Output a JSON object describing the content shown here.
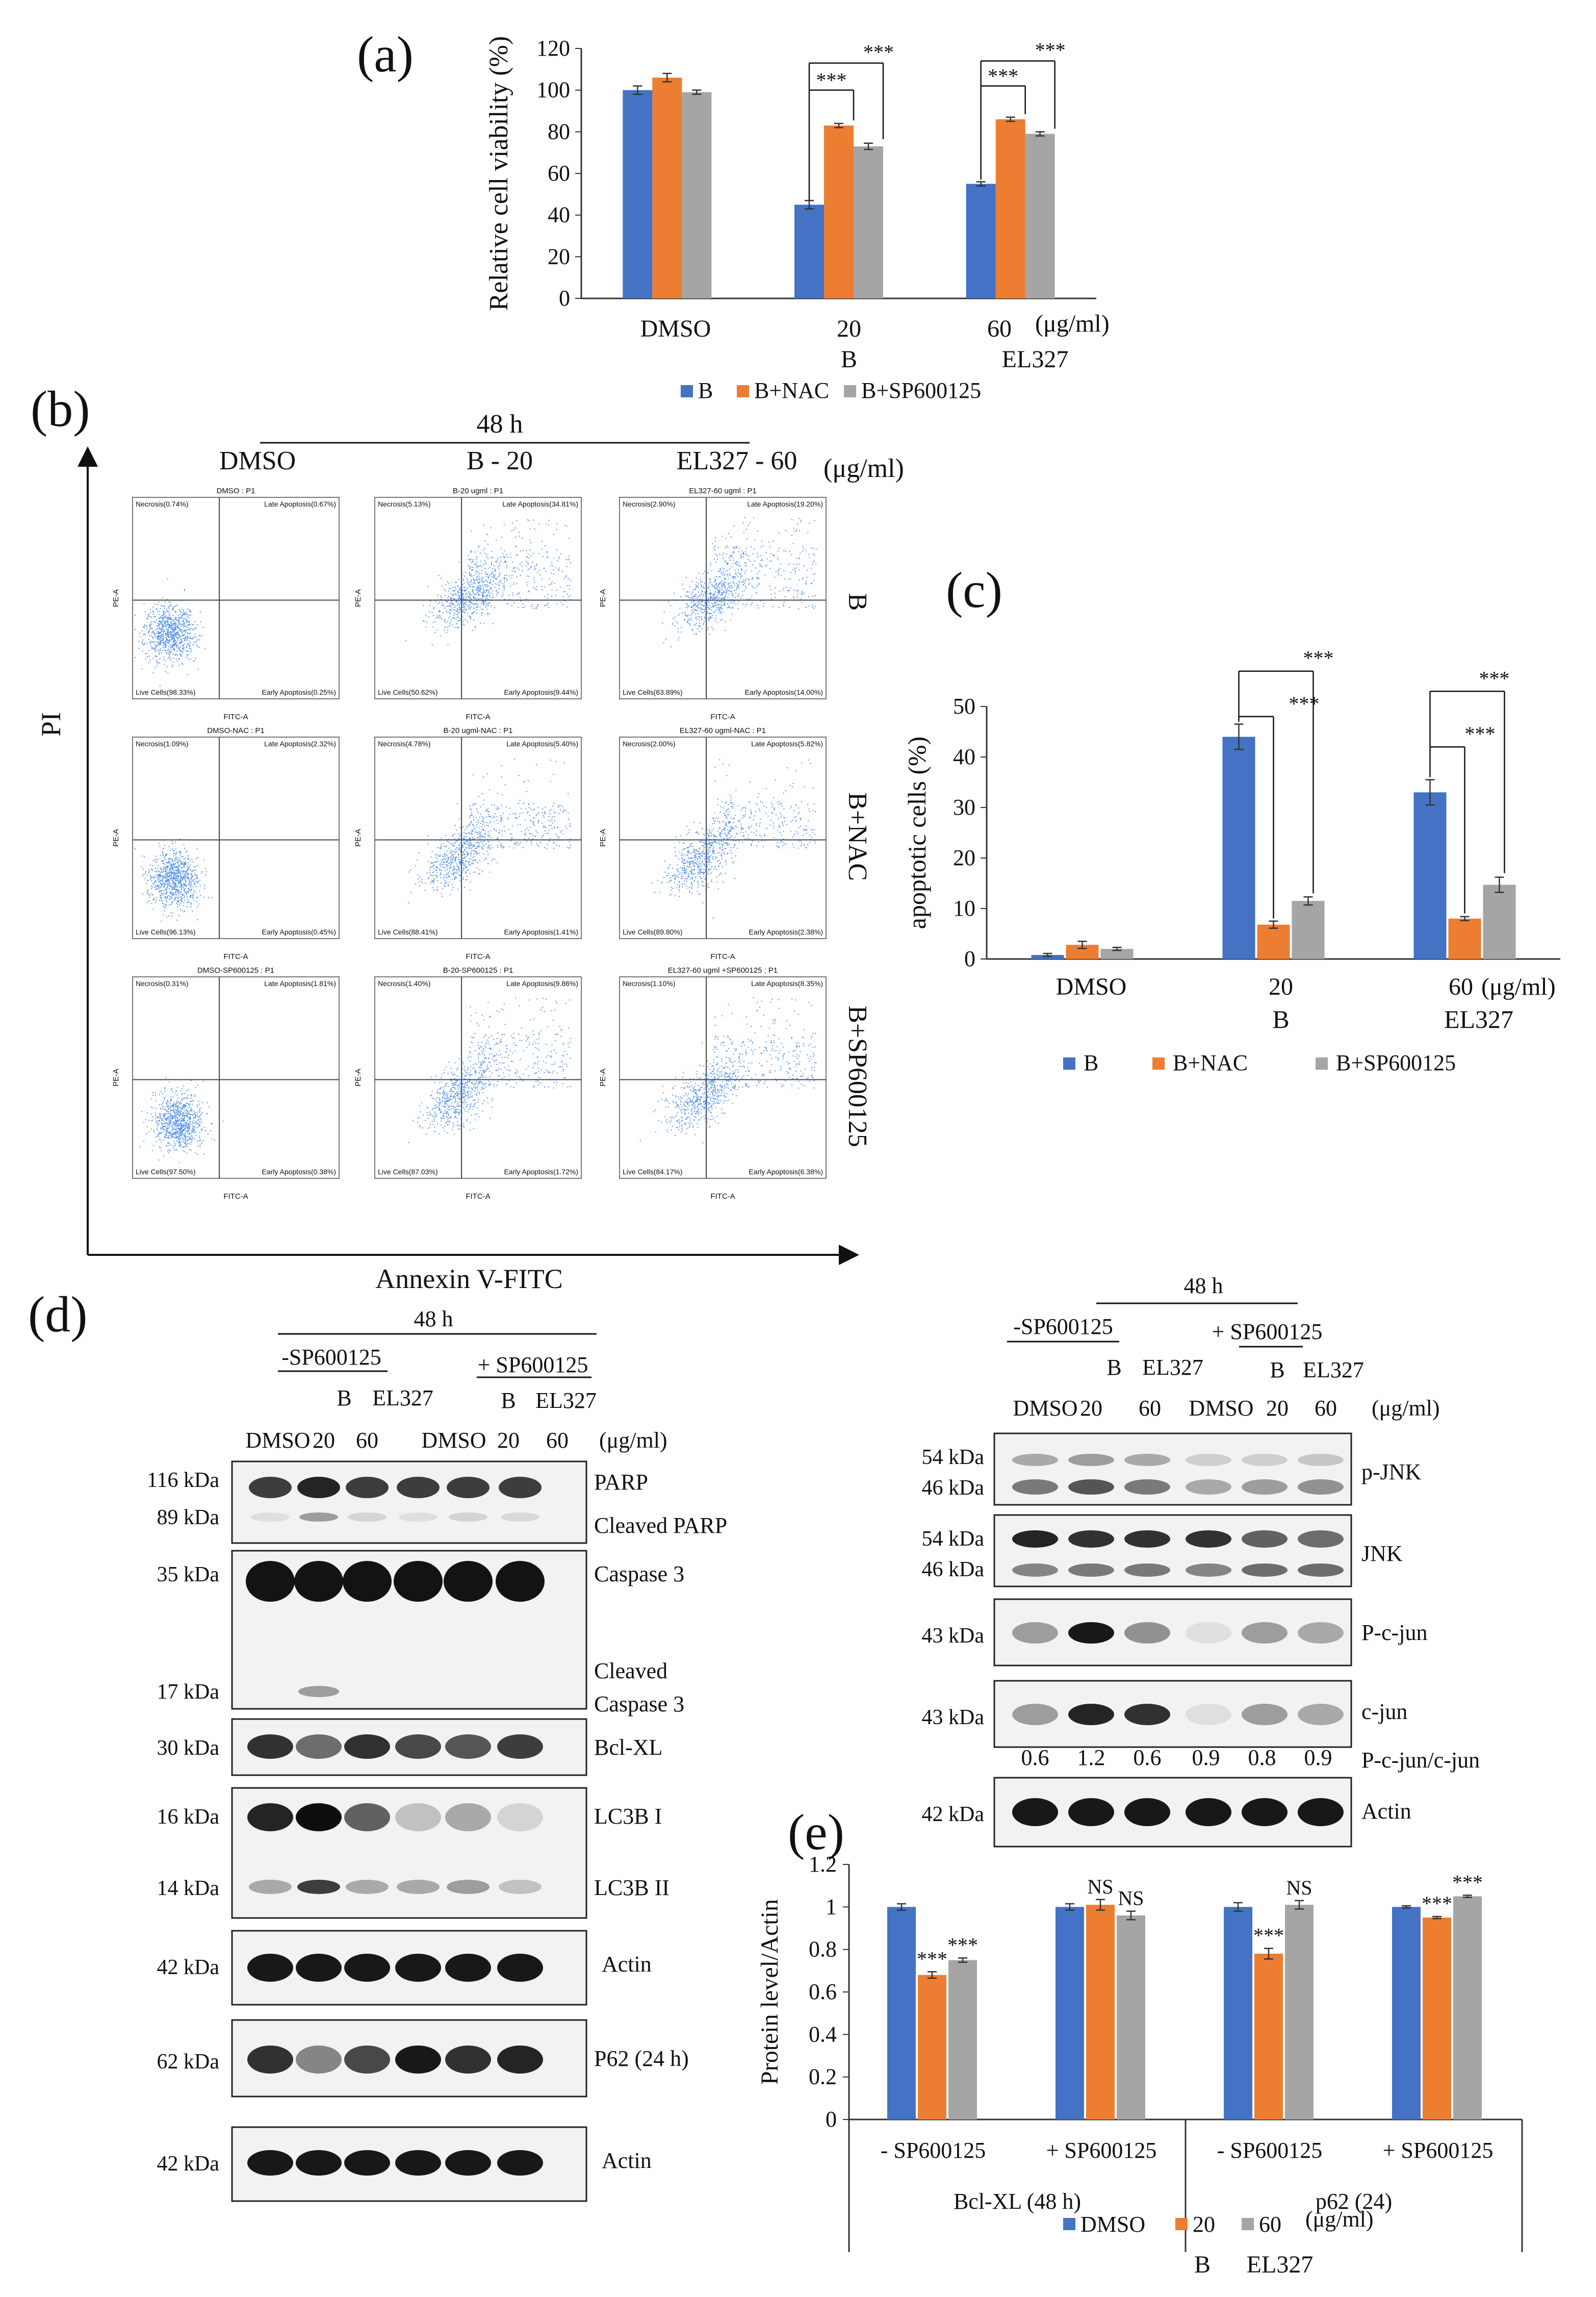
{
  "colors": {
    "B": "#4472C4",
    "B+NAC": "#ED7D31",
    "B+SP600125": "#A5A5A5",
    "flow": "#1e6fe0"
  },
  "panel_labels": {
    "a": "(a)",
    "b": "(b)",
    "c": "(c)",
    "d": "(d)",
    "e": "(e)"
  },
  "unit": "(μg/ml)",
  "sig": "***",
  "chart_data": [
    {
      "id": "a",
      "type": "bar",
      "title": "",
      "ylabel": "Relative cell viability (%)",
      "ylim": [
        0,
        120
      ],
      "yticks": [
        0,
        20,
        40,
        60,
        80,
        100,
        120
      ],
      "categories": [
        "DMSO",
        "20",
        "60"
      ],
      "category_sublabels": [
        "",
        "B",
        "EL327"
      ],
      "x_unit": "(μg/ml)",
      "series": [
        {
          "name": "B",
          "values": [
            100,
            45,
            55
          ],
          "errors": [
            2,
            2,
            1
          ]
        },
        {
          "name": "B+NAC",
          "values": [
            106,
            83,
            86
          ],
          "errors": [
            2,
            1,
            1
          ]
        },
        {
          "name": "B+SP600125",
          "values": [
            99,
            73,
            79
          ],
          "errors": [
            1,
            1.5,
            1
          ]
        }
      ],
      "legend": [
        "B",
        "B+NAC",
        "B+SP600125"
      ],
      "annotations": [
        "***",
        "***",
        "***",
        "***"
      ]
    },
    {
      "id": "c",
      "type": "bar",
      "title": "",
      "ylabel": "apoptotic cells (%)",
      "ylim": [
        0,
        50
      ],
      "yticks": [
        0,
        10,
        20,
        30,
        40,
        50
      ],
      "categories": [
        "DMSO",
        "20",
        "60"
      ],
      "category_sublabels": [
        "",
        "B",
        "EL327"
      ],
      "x_unit": "(μg/ml)",
      "series": [
        {
          "name": "B",
          "values": [
            0.8,
            44,
            33
          ],
          "errors": [
            0.3,
            2.5,
            2.5
          ]
        },
        {
          "name": "B+NAC",
          "values": [
            2.8,
            6.8,
            8
          ],
          "errors": [
            0.7,
            0.7,
            0.4
          ]
        },
        {
          "name": "B+SP600125",
          "values": [
            2,
            11.5,
            14.7
          ],
          "errors": [
            0.3,
            0.8,
            1.5
          ]
        }
      ],
      "legend": [
        "B",
        "B+NAC",
        "B+SP600125"
      ],
      "annotations": [
        "***",
        "***",
        "***",
        "***"
      ]
    },
    {
      "id": "e",
      "type": "bar",
      "title": "",
      "ylabel": "Protein level/Actin",
      "ylim": [
        0,
        1.2
      ],
      "yticks": [
        "0",
        "0.2",
        "0.4",
        "0.6",
        "0.8",
        "1",
        "1.2"
      ],
      "categories": [
        "- SP600125",
        "+ SP600125",
        "- SP600125",
        "+ SP600125"
      ],
      "groups": [
        "Bcl-XL (48 h)",
        "p62 (24)"
      ],
      "series": [
        {
          "name": "DMSO",
          "values": [
            1.0,
            1.0,
            1.0,
            1.0
          ],
          "errors": [
            0.015,
            0.015,
            0.02,
            0.005
          ]
        },
        {
          "name": "20 B",
          "values": [
            0.68,
            1.01,
            0.78,
            0.95
          ],
          "errors": [
            0.015,
            0.025,
            0.025,
            0.005
          ]
        },
        {
          "name": "60 EL327",
          "values": [
            0.75,
            0.96,
            1.01,
            1.05
          ],
          "errors": [
            0.01,
            0.02,
            0.02,
            0.005
          ]
        }
      ],
      "annotations": [
        {
          "group": 0,
          "series": 1,
          "text": "***"
        },
        {
          "group": 0,
          "series": 2,
          "text": "***"
        },
        {
          "group": 1,
          "series": 1,
          "text": "NS"
        },
        {
          "group": 1,
          "series": 2,
          "text": "NS"
        },
        {
          "group": 2,
          "series": 1,
          "text": "***"
        },
        {
          "group": 2,
          "series": 2,
          "text": "NS"
        },
        {
          "group": 3,
          "series": 1,
          "text": "***"
        },
        {
          "group": 3,
          "series": 2,
          "text": "***"
        }
      ],
      "legend": [
        "DMSO",
        "20",
        "60"
      ],
      "legend_unit": "(μg/ml)",
      "legend_sub": [
        "B",
        "EL327"
      ]
    }
  ],
  "flow": {
    "time": "48 h",
    "columns": [
      "DMSO",
      "B - 20",
      "EL327 - 60"
    ],
    "unit": "(μg/ml)",
    "rows": [
      "B",
      "B+NAC",
      "B+SP600125"
    ],
    "y_axis": "PI",
    "x_axis": "Annexin V-FITC",
    "cell_axes": {
      "x": "FITC-A",
      "y": "PE-A"
    },
    "plots": [
      [
        {
          "title": "DMSO : P1",
          "q": [
            "Necrosis(0.74%)",
            "Late Apoptosis(0.67%)",
            "Live Cells(98.33%)",
            "Early Apoptosis(0.25%)"
          ]
        },
        {
          "title": "B-20 ugml : P1",
          "q": [
            "Necrosis(5.13%)",
            "Late Apoptosis(34.81%)",
            "Live Cells(50.62%)",
            "Early Apoptosis(9.44%)"
          ]
        },
        {
          "title": "EL327-60 ugml : P1",
          "q": [
            "Necrosis(2.90%)",
            "Late Apoptosis(19.20%)",
            "Live Cells(63.89%)",
            "Early Apoptosis(14.00%)"
          ]
        }
      ],
      [
        {
          "title": "DMSO-NAC : P1",
          "q": [
            "Necrosis(1.09%)",
            "Late Apoptosis(2.32%)",
            "Live Cells(96.13%)",
            "Early Apoptosis(0.45%)"
          ]
        },
        {
          "title": "B-20 ugml-NAC : P1",
          "q": [
            "Necrosis(4.78%)",
            "Late Apoptosis(5.40%)",
            "Live Cells(88.41%)",
            "Early Apoptosis(1.41%)"
          ]
        },
        {
          "title": "EL327-60 ugml-NAC : P1",
          "q": [
            "Necrosis(2.00%)",
            "Late Apoptosis(5.82%)",
            "Live Cells(89.80%)",
            "Early Apoptosis(2.38%)"
          ]
        }
      ],
      [
        {
          "title": "DMSO-SP600125 : P1",
          "q": [
            "Necrosis(0.31%)",
            "Late Apoptosis(1.81%)",
            "Live Cells(97.50%)",
            "Early Apoptosis(0.38%)"
          ]
        },
        {
          "title": "B-20-SP600125 : P1",
          "q": [
            "Necrosis(1.40%)",
            "Late Apoptosis(9.86%)",
            "Live Cells(87.03%)",
            "Early Apoptosis(1.72%)"
          ]
        },
        {
          "title": "EL327-60 ugml +SP600125 : P1",
          "q": [
            "Necrosis(1.10%)",
            "Late Apoptosis(8.35%)",
            "Live Cells(84.17%)",
            "Early Apoptosis(6.38%)"
          ]
        }
      ]
    ]
  },
  "blot_left": {
    "time": "48 h",
    "minus": "-SP600125",
    "plus": "+ SP600125",
    "sub": [
      "B",
      "EL327"
    ],
    "lanes": [
      "DMSO",
      "20",
      "60",
      "DMSO",
      "20",
      "60"
    ],
    "unit": "(μg/ml)",
    "bands": [
      {
        "kda": [
          "116 kDa",
          "89 kDa"
        ],
        "labels": [
          "PARP",
          "Cleaved  PARP"
        ]
      },
      {
        "kda": [
          "35 kDa",
          "17 kDa"
        ],
        "labels": [
          "Caspase 3",
          "Cleaved",
          "Caspase 3"
        ]
      },
      {
        "kda": [
          "30 kDa"
        ],
        "labels": [
          "Bcl-XL"
        ]
      },
      {
        "kda": [
          "16 kDa",
          "14 kDa"
        ],
        "labels": [
          "LC3B I",
          "LC3B II"
        ]
      },
      {
        "kda": [
          "42 kDa"
        ],
        "labels": [
          "Actin"
        ]
      },
      {
        "kda": [
          "62 kDa"
        ],
        "labels": [
          "P62 (24 h)"
        ]
      },
      {
        "kda": [
          "42 kDa"
        ],
        "labels": [
          "Actin"
        ]
      }
    ]
  },
  "blot_right": {
    "time": "48 h",
    "minus": "-SP600125",
    "plus": "+ SP600125",
    "sub": [
      "B",
      "EL327"
    ],
    "lanes": [
      "DMSO",
      "20",
      "60",
      "DMSO",
      "20",
      "60"
    ],
    "unit": "(μg/ml)",
    "bands": [
      {
        "kda": [
          "54 kDa",
          "46 kDa"
        ],
        "labels": [
          "p-JNK"
        ]
      },
      {
        "kda": [
          "54 kDa",
          "46 kDa"
        ],
        "labels": [
          "JNK"
        ]
      },
      {
        "kda": [
          "43 kDa"
        ],
        "labels": [
          "P-c-jun"
        ]
      },
      {
        "kda": [
          "43 kDa"
        ],
        "labels": [
          "c-jun"
        ]
      },
      {
        "kda": [
          "42 kDa"
        ],
        "labels": [
          "Actin"
        ]
      }
    ],
    "ratio_label": "P-c-jun/c-jun",
    "ratios": [
      "0.6",
      "1.2",
      "0.6",
      "0.9",
      "0.8",
      "0.9"
    ]
  }
}
